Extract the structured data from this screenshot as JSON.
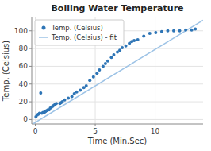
{
  "chart_data": {
    "type": "scatter",
    "title": "Boiling Water Temperature",
    "x_label": "Time (Min.Sec)",
    "y_label": "Temp. (Celsius)",
    "series": [
      {
        "name": "Temp. (Celsius)",
        "type": "scatter",
        "color": "#2e75b6",
        "marker": "point",
        "x": [
          0.05,
          0.15,
          0.25,
          0.35,
          0.45,
          0.55,
          0.65,
          0.75,
          0.85,
          0.95,
          1.05,
          1.15,
          1.25,
          1.35,
          1.45,
          1.55,
          1.65,
          1.75,
          2.05,
          2.15,
          2.25,
          2.45,
          2.75,
          3.05,
          3.25,
          3.45,
          3.75,
          4.05,
          4.25,
          4.55,
          4.85,
          5.15,
          5.35,
          5.65,
          5.85,
          6.05,
          6.35,
          6.55,
          6.85,
          7.05,
          7.25,
          7.55,
          7.85,
          8.05,
          8.25,
          8.55,
          9.05,
          9.55,
          10.05,
          10.55,
          11.05,
          11.55,
          12.05,
          12.55,
          13.05,
          13.35
        ],
        "values": [
          3,
          5,
          6,
          7,
          30,
          7,
          8,
          8,
          9,
          10,
          11,
          11,
          13,
          14,
          15,
          16,
          17,
          18,
          18,
          19,
          20,
          22,
          24,
          26,
          29,
          31,
          33,
          36,
          38,
          44,
          48,
          52,
          56,
          60,
          63,
          66,
          70,
          73,
          76,
          78,
          81,
          83,
          86,
          88,
          89,
          90,
          94,
          97,
          98,
          99,
          100,
          100,
          100,
          101,
          101,
          102
        ]
      },
      {
        "name": "Temp. (Celsius) - fit",
        "type": "line",
        "color": "#9dc3e6",
        "line_style": "solid",
        "x": [
          -0.2,
          14.0
        ],
        "values": [
          -5.0,
          112.0
        ]
      }
    ],
    "xlim": [
      -0.3,
      14.0
    ],
    "ylim": [
      -5,
      115
    ],
    "xticks": [
      0,
      5,
      10
    ],
    "yticks": [
      0,
      20,
      40,
      60,
      80,
      100
    ],
    "grid": true,
    "legend": "upper left"
  }
}
